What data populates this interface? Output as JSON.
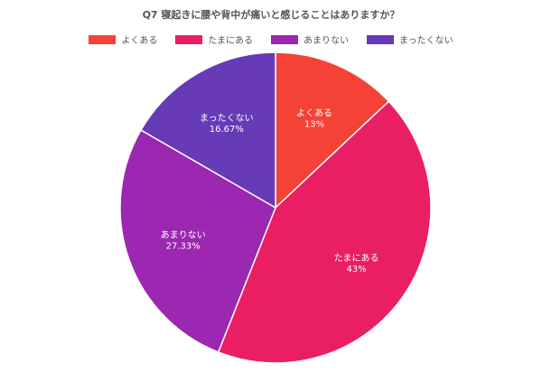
{
  "chart_data": {
    "type": "pie",
    "title": "Q7 寝起きに腰や背中が痛いと感じることはありますか？",
    "categories": [
      "よくある",
      "たまにある",
      "あまりない",
      "まったくない"
    ],
    "values": [
      13,
      43,
      27.33,
      16.67
    ],
    "value_labels": [
      "13%",
      "43%",
      "27.33%",
      "16.67%"
    ],
    "colors": [
      "#f44336",
      "#e91e63",
      "#9c27b0",
      "#673ab7"
    ],
    "legend_position": "top"
  }
}
